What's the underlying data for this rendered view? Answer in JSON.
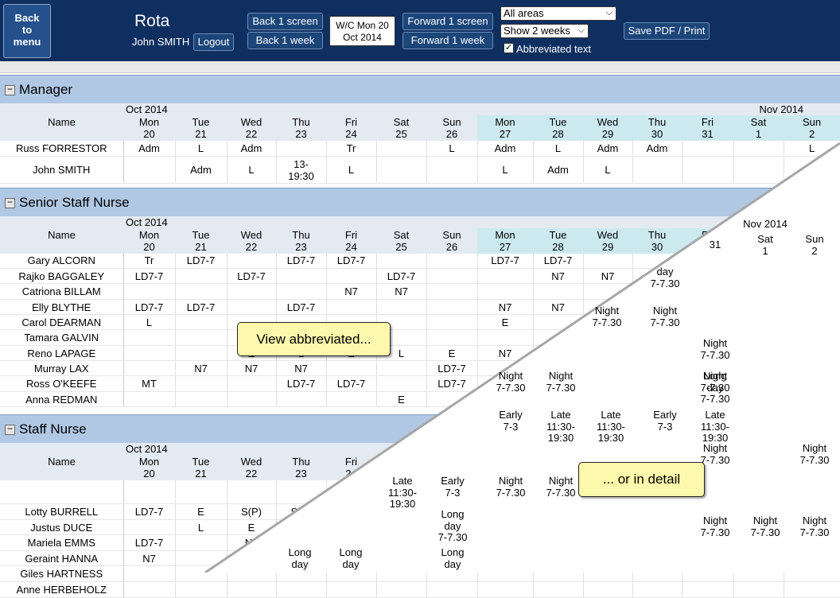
{
  "header": {
    "back_menu": "Back to menu",
    "title": "Rota",
    "user": "John SMITH",
    "logout": "Logout",
    "back_screen": "Back 1 screen",
    "back_week": "Back 1 week",
    "wc_line1": "W/C Mon 20",
    "wc_line2": "Oct 2014",
    "forward_screen": "Forward 1 screen",
    "forward_week": "Forward 1 week",
    "areas_value": "All areas",
    "weeks_value": "Show 2 weeks",
    "abbrev_label": "Abbreviated text",
    "abbrev_checked": true,
    "save": "Save PDF / Print"
  },
  "name_header": "Name",
  "month1": "Oct 2014",
  "month2": "Nov 2014",
  "day_names": [
    "Mon",
    "Tue",
    "Wed",
    "Thu",
    "Fri",
    "Sat",
    "Sun",
    "Mon",
    "Tue",
    "Wed",
    "Thu",
    "Fri",
    "Sat",
    "Sun"
  ],
  "day_nums": [
    "20",
    "21",
    "22",
    "23",
    "24",
    "25",
    "26",
    "27",
    "28",
    "29",
    "30",
    "31",
    "1",
    "2"
  ],
  "sections": [
    {
      "title": "Manager",
      "rows": [
        {
          "name": "Russ FORRESTOR",
          "cells": [
            "Adm",
            "L",
            "Adm",
            "",
            "Tr",
            "",
            "L",
            "Adm",
            "L",
            "Adm",
            "Adm",
            "",
            "",
            "L"
          ]
        },
        {
          "name": "John SMITH",
          "cells": [
            "",
            "Adm",
            "L",
            "13-\n19:30",
            "L",
            "",
            "",
            "L",
            "Adm",
            "L",
            "",
            "",
            "",
            ""
          ]
        }
      ]
    },
    {
      "title": "Senior Staff Nurse",
      "rows": [
        {
          "name": "Gary ALCORN",
          "cells": [
            "Tr",
            "LD7-7",
            "",
            "LD7-7",
            "LD7-7",
            "",
            "",
            "LD7-7",
            "LD7-7",
            "",
            "",
            "",
            "",
            ""
          ]
        },
        {
          "name": "Rajko BAGGALEY",
          "cells": [
            "LD7-7",
            "",
            "LD7-7",
            "",
            "",
            "LD7-7",
            "",
            "",
            "N7",
            "N7",
            "",
            "",
            "",
            ""
          ]
        },
        {
          "name": "Catriona BILLAM",
          "cells": [
            "",
            "",
            "",
            "",
            "N7",
            "N7",
            "",
            "",
            "",
            "",
            "",
            "",
            "",
            ""
          ]
        },
        {
          "name": "Elly BLYTHE",
          "cells": [
            "LD7-7",
            "LD7-7",
            "",
            "LD7-7",
            "",
            "",
            "",
            "N7",
            "N7",
            "",
            "",
            "",
            "",
            ""
          ]
        },
        {
          "name": "Carol DEARMAN",
          "cells": [
            "L",
            "",
            "",
            "",
            "",
            "",
            "",
            "E",
            "",
            "",
            "",
            "",
            "",
            ""
          ]
        },
        {
          "name": "Tamara GALVIN",
          "cells": [
            "",
            "",
            "",
            "",
            "",
            "",
            "",
            "",
            "",
            "",
            "",
            "",
            "",
            ""
          ]
        },
        {
          "name": "Reno LAPAGE",
          "cells": [
            "",
            "",
            "E",
            "L",
            "E",
            "L",
            "E",
            "N7",
            "",
            "",
            "",
            "",
            "",
            ""
          ]
        },
        {
          "name": "Murray LAX",
          "cells": [
            "",
            "N7",
            "N7",
            "N7",
            "",
            "",
            "LD7-7",
            "",
            "",
            "",
            "",
            "",
            "",
            ""
          ]
        },
        {
          "name": "Ross O'KEEFE",
          "cells": [
            "MT",
            "",
            "",
            "LD7-7",
            "LD7-7",
            "",
            "LD7-7",
            "",
            "",
            "",
            "",
            "",
            "",
            ""
          ]
        },
        {
          "name": "Anna REDMAN",
          "cells": [
            "",
            "",
            "",
            "",
            "",
            "E",
            "",
            "",
            "",
            "",
            "",
            "",
            "",
            ""
          ]
        }
      ]
    },
    {
      "title": "Staff Nurse",
      "rows": [
        {
          "name": "",
          "cells": [
            "",
            "",
            "",
            "",
            "",
            "",
            "",
            "",
            "",
            "",
            "",
            "",
            "",
            ""
          ]
        },
        {
          "name": "Lotty BURRELL",
          "cells": [
            "LD7-7",
            "E",
            "S(P)",
            "S(P)",
            "",
            "",
            "",
            "",
            "",
            "",
            "",
            "",
            "",
            ""
          ]
        },
        {
          "name": "Justus DUCE",
          "cells": [
            "",
            "L",
            "E",
            "",
            "",
            "",
            "",
            "",
            "",
            "",
            "",
            "",
            "",
            ""
          ]
        },
        {
          "name": "Mariela EMMS",
          "cells": [
            "LD7-7",
            "",
            "N7",
            "",
            "",
            "",
            "",
            "",
            "",
            "",
            "",
            "",
            "",
            ""
          ]
        },
        {
          "name": "Geraint HANNA",
          "cells": [
            "N7",
            "",
            "",
            "",
            "",
            "",
            "",
            "",
            "",
            "",
            "",
            "",
            "",
            ""
          ]
        },
        {
          "name": "Giles HARTNESS",
          "cells": [
            "",
            "",
            "",
            "",
            "",
            "",
            "",
            "",
            "",
            "",
            "",
            "",
            "",
            ""
          ]
        },
        {
          "name": "Anne HERBEHOLZ",
          "cells": [
            "",
            "",
            "",
            "",
            "",
            "",
            "",
            "",
            "",
            "",
            "",
            "",
            "",
            ""
          ]
        }
      ]
    }
  ],
  "detail_cells": [
    {
      "text": "day\n7-7.30"
    },
    {
      "text": "Night\n7-7.30"
    },
    {
      "text": "Night\n7-7.30"
    },
    {
      "text": "Night\n7-7.30"
    },
    {
      "text": "Night\n7-7.30"
    },
    {
      "text": "Night\n7-7.30"
    },
    {
      "text": "Night\n7-7.30"
    },
    {
      "text": "Long\nday\n7-7.30"
    },
    {
      "text": "Early\n7-3"
    },
    {
      "text": "Late\n11:30-\n19:30"
    },
    {
      "text": "Late\n11:30-\n19:30"
    },
    {
      "text": "Early\n7-3"
    },
    {
      "text": "Late\n11:30-\n19:30"
    },
    {
      "text": "Night\n7-7.30"
    },
    {
      "text": "Night\n7-7.30"
    },
    {
      "text": "Late\n11:30-\n19:30"
    },
    {
      "text": "Early\n7-3"
    },
    {
      "text": "Night\n7-7.30"
    },
    {
      "text": "Night\n7-7.30"
    },
    {
      "text": "Long\nday\n7-7.30"
    },
    {
      "text": "Night\n7-7.30"
    },
    {
      "text": "Night\n7-7.30"
    },
    {
      "text": "Night\n7-7.30"
    },
    {
      "text": "Long\nday"
    },
    {
      "text": "Long\nday"
    },
    {
      "text": "Long\nday"
    },
    {
      "text": "Nov 2014"
    },
    {
      "text": "Sat\n1"
    },
    {
      "text": "Sun\n2"
    },
    {
      "text": "31"
    }
  ],
  "callouts": {
    "abbreviated": "View abbreviated...",
    "detail": "... or in detail"
  }
}
